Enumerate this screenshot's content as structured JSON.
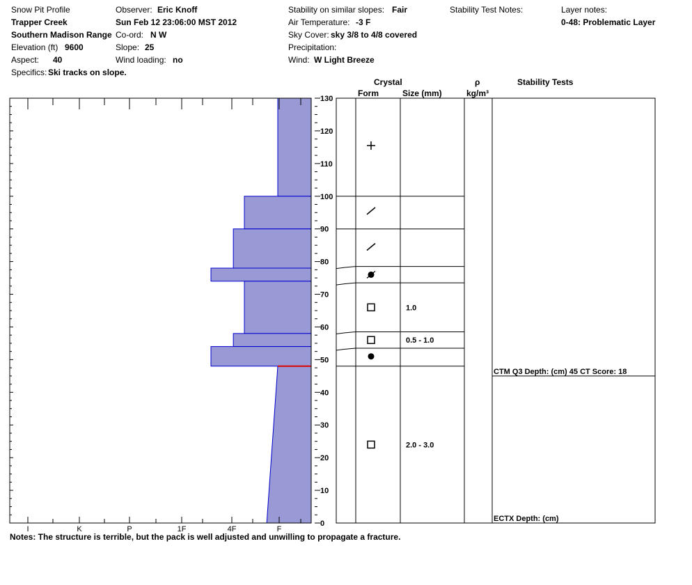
{
  "header": {
    "title": "Snow Pit Profile",
    "location": "Trapper Creek",
    "range": "Southern Madison Range",
    "elevation_label": "Elevation (ft)",
    "elevation": "9600",
    "aspect_label": "Aspect:",
    "aspect": "40",
    "specifics_label": "Specifics:",
    "specifics": "Ski tracks on slope.",
    "observer_label": "Observer:",
    "observer": "Eric Knoff",
    "datetime": "Sun Feb 12 23:06:00 MST 2012",
    "coord_label": "Co-ord:",
    "coord": "N  W",
    "slope_label": "Slope:",
    "slope": "25",
    "wind_loading_label": "Wind loading:",
    "wind_loading": "no",
    "stability_label": "Stability on similar slopes:",
    "stability": "Fair",
    "air_temp_label": "Air Temperature:",
    "air_temp": "-3 F",
    "sky_label": "Sky Cover:",
    "sky": "sky 3/8 to 4/8 covered",
    "precip_label": "Precipitation:",
    "wind_label": "Wind:",
    "wind": "W Light Breeze",
    "stability_notes_label": "Stability Test Notes:",
    "layer_notes_label": "Layer notes:",
    "layer_note": "0-48: Problematic Layer"
  },
  "columns": {
    "crystal": "Crystal",
    "form": "Form",
    "size": "Size (mm)",
    "rho": "ρ",
    "density_unit": "kg/m³",
    "stability_tests": "Stability Tests"
  },
  "notes": "Notes:  The structure is terrible, but the pack is well adjusted and unwilling to propagate a fracture.",
  "colors": {
    "hardness_fill": "#9999d6",
    "hardness_edge": "#0000cc",
    "weak_layer": "#dd0000"
  },
  "chart_data": {
    "type": "bar",
    "ylim": [
      0,
      130
    ],
    "y_ticks": [
      0,
      10,
      20,
      30,
      40,
      50,
      60,
      70,
      80,
      90,
      100,
      110,
      120,
      130
    ],
    "hardness_ticks": [
      "I",
      "K",
      "P",
      "1F",
      "4F",
      "F"
    ],
    "hardness_scale_note": "hardness index: F=1, 4F=2, 1F=3, P=4, K=5, I=6",
    "hardness_layers": [
      {
        "top": 130,
        "bottom": 100,
        "hardness": 1
      },
      {
        "top": 100,
        "bottom": 90,
        "hardness": 2
      },
      {
        "top": 90,
        "bottom": 78,
        "hardness": 2.33
      },
      {
        "top": 78,
        "bottom": 74,
        "hardness": 3
      },
      {
        "top": 74,
        "bottom": 58,
        "hardness": 2
      },
      {
        "top": 58,
        "bottom": 54,
        "hardness": 2.33
      },
      {
        "top": 54,
        "bottom": 48,
        "hardness": 3
      },
      {
        "top": 48,
        "bottom": 0,
        "hardness_top": 1,
        "hardness_bottom": 1.33
      }
    ],
    "weak_layer_depth": 48,
    "layer_boundaries": [
      100,
      90,
      78.5,
      73.5,
      58.5,
      53.5,
      48
    ],
    "crystals": [
      {
        "depth": 115.5,
        "form": "precipitation-particles",
        "size": ""
      },
      {
        "depth": 95.5,
        "form": "decomposing-fragments",
        "size": ""
      },
      {
        "depth": 84.5,
        "form": "decomposing-fragments",
        "size": ""
      },
      {
        "depth": 76,
        "form": "rounded-faceted",
        "size": ""
      },
      {
        "depth": 66,
        "form": "faceted",
        "size": "1.0"
      },
      {
        "depth": 56,
        "form": "faceted",
        "size": "0.5 - 1.0"
      },
      {
        "depth": 51,
        "form": "rounded",
        "size": ""
      },
      {
        "depth": 24,
        "form": "faceted",
        "size": "2.0 - 3.0"
      }
    ],
    "stability_tests": [
      {
        "depth": 45,
        "text": "CTM Q3 Depth: (cm) 45 CT Score: 18"
      },
      {
        "depth": 0,
        "text": "ECTX   Depth: (cm)"
      }
    ]
  }
}
